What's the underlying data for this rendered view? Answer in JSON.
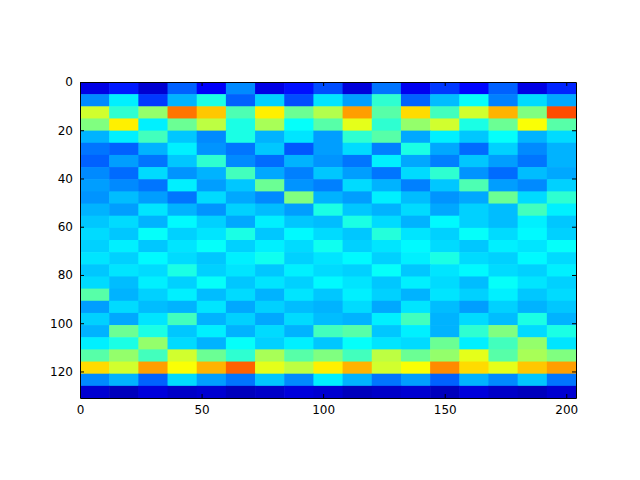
{
  "chart_data": {
    "type": "heatmap",
    "xlim": [
      0,
      204
    ],
    "ylim": [
      0,
      131
    ],
    "xticks": [
      0,
      50,
      100,
      150,
      200
    ],
    "yticks": [
      0,
      20,
      40,
      60,
      80,
      100,
      120
    ],
    "zlim": [
      0,
      1
    ],
    "cells": [
      [
        0.1,
        0.15,
        0.08,
        0.22,
        0.12,
        0.26,
        0.1,
        0.14,
        0.2,
        0.09,
        0.24,
        0.11,
        0.18,
        0.13,
        0.22,
        0.1,
        0.16
      ],
      [
        0.26,
        0.36,
        0.18,
        0.3,
        0.4,
        0.22,
        0.33,
        0.2,
        0.35,
        0.28,
        0.42,
        0.22,
        0.31,
        0.38,
        0.25,
        0.34,
        0.29
      ],
      [
        0.58,
        0.42,
        0.52,
        0.76,
        0.68,
        0.45,
        0.64,
        0.48,
        0.55,
        0.72,
        0.46,
        0.66,
        0.44,
        0.58,
        0.7,
        0.5,
        0.8
      ],
      [
        0.5,
        0.64,
        0.36,
        0.48,
        0.56,
        0.4,
        0.54,
        0.38,
        0.46,
        0.6,
        0.42,
        0.52,
        0.58,
        0.4,
        0.48,
        0.62,
        0.46
      ],
      [
        0.3,
        0.36,
        0.44,
        0.32,
        0.26,
        0.4,
        0.3,
        0.35,
        0.28,
        0.42,
        0.46,
        0.29,
        0.36,
        0.32,
        0.38,
        0.3,
        0.34
      ],
      [
        0.24,
        0.22,
        0.3,
        0.36,
        0.27,
        0.24,
        0.32,
        0.21,
        0.28,
        0.34,
        0.25,
        0.4,
        0.29,
        0.23,
        0.33,
        0.26,
        0.3
      ],
      [
        0.22,
        0.28,
        0.24,
        0.32,
        0.42,
        0.26,
        0.23,
        0.3,
        0.27,
        0.24,
        0.36,
        0.29,
        0.25,
        0.32,
        0.28,
        0.24,
        0.3
      ],
      [
        0.26,
        0.23,
        0.34,
        0.27,
        0.3,
        0.44,
        0.29,
        0.25,
        0.32,
        0.28,
        0.24,
        0.34,
        0.42,
        0.27,
        0.23,
        0.31,
        0.29
      ],
      [
        0.28,
        0.26,
        0.24,
        0.36,
        0.28,
        0.32,
        0.48,
        0.27,
        0.25,
        0.34,
        0.3,
        0.25,
        0.32,
        0.45,
        0.28,
        0.26,
        0.33
      ],
      [
        0.27,
        0.31,
        0.28,
        0.24,
        0.34,
        0.29,
        0.26,
        0.5,
        0.3,
        0.28,
        0.36,
        0.31,
        0.27,
        0.29,
        0.48,
        0.34,
        0.42
      ],
      [
        0.3,
        0.28,
        0.35,
        0.3,
        0.27,
        0.33,
        0.31,
        0.28,
        0.4,
        0.32,
        0.3,
        0.34,
        0.29,
        0.33,
        0.31,
        0.44,
        0.36
      ],
      [
        0.32,
        0.34,
        0.3,
        0.37,
        0.33,
        0.29,
        0.36,
        0.32,
        0.31,
        0.4,
        0.34,
        0.3,
        0.37,
        0.33,
        0.31,
        0.36,
        0.32
      ],
      [
        0.34,
        0.32,
        0.38,
        0.33,
        0.35,
        0.4,
        0.32,
        0.37,
        0.34,
        0.32,
        0.41,
        0.35,
        0.33,
        0.38,
        0.34,
        0.37,
        0.33
      ],
      [
        0.33,
        0.36,
        0.32,
        0.35,
        0.38,
        0.33,
        0.36,
        0.34,
        0.39,
        0.33,
        0.35,
        0.37,
        0.34,
        0.32,
        0.36,
        0.35,
        0.38
      ],
      [
        0.35,
        0.33,
        0.37,
        0.34,
        0.32,
        0.36,
        0.39,
        0.33,
        0.35,
        0.37,
        0.33,
        0.36,
        0.4,
        0.34,
        0.33,
        0.37,
        0.34
      ],
      [
        0.32,
        0.35,
        0.34,
        0.4,
        0.33,
        0.35,
        0.32,
        0.36,
        0.34,
        0.33,
        0.38,
        0.32,
        0.35,
        0.37,
        0.34,
        0.33,
        0.36
      ],
      [
        0.34,
        0.31,
        0.36,
        0.33,
        0.38,
        0.32,
        0.35,
        0.33,
        0.37,
        0.35,
        0.32,
        0.36,
        0.34,
        0.31,
        0.38,
        0.35,
        0.33
      ],
      [
        0.46,
        0.3,
        0.33,
        0.36,
        0.31,
        0.34,
        0.3,
        0.35,
        0.32,
        0.36,
        0.33,
        0.3,
        0.35,
        0.33,
        0.36,
        0.32,
        0.34
      ],
      [
        0.28,
        0.34,
        0.31,
        0.3,
        0.35,
        0.29,
        0.33,
        0.31,
        0.3,
        0.34,
        0.29,
        0.35,
        0.31,
        0.28,
        0.33,
        0.3,
        0.32
      ],
      [
        0.33,
        0.29,
        0.35,
        0.44,
        0.3,
        0.33,
        0.29,
        0.34,
        0.31,
        0.3,
        0.36,
        0.44,
        0.3,
        0.34,
        0.31,
        0.4,
        0.3
      ],
      [
        0.3,
        0.48,
        0.4,
        0.32,
        0.36,
        0.3,
        0.34,
        0.3,
        0.44,
        0.46,
        0.32,
        0.36,
        0.3,
        0.42,
        0.5,
        0.34,
        0.4
      ],
      [
        0.36,
        0.4,
        0.52,
        0.34,
        0.3,
        0.38,
        0.33,
        0.36,
        0.32,
        0.38,
        0.35,
        0.34,
        0.48,
        0.36,
        0.44,
        0.52,
        0.35
      ],
      [
        0.46,
        0.52,
        0.44,
        0.58,
        0.48,
        0.42,
        0.54,
        0.46,
        0.5,
        0.44,
        0.56,
        0.48,
        0.52,
        0.6,
        0.46,
        0.54,
        0.5
      ],
      [
        0.66,
        0.58,
        0.72,
        0.62,
        0.7,
        0.78,
        0.6,
        0.56,
        0.64,
        0.7,
        0.58,
        0.62,
        0.74,
        0.66,
        0.6,
        0.68,
        0.72
      ],
      [
        0.26,
        0.3,
        0.22,
        0.34,
        0.28,
        0.24,
        0.32,
        0.26,
        0.36,
        0.3,
        0.24,
        0.28,
        0.22,
        0.3,
        0.26,
        0.32,
        0.24
      ],
      [
        0.08,
        0.06,
        0.09,
        0.07,
        0.08,
        0.06,
        0.07,
        0.09,
        0.08,
        0.06,
        0.07,
        0.08,
        0.06,
        0.09,
        0.07,
        0.06,
        0.08
      ]
    ]
  }
}
